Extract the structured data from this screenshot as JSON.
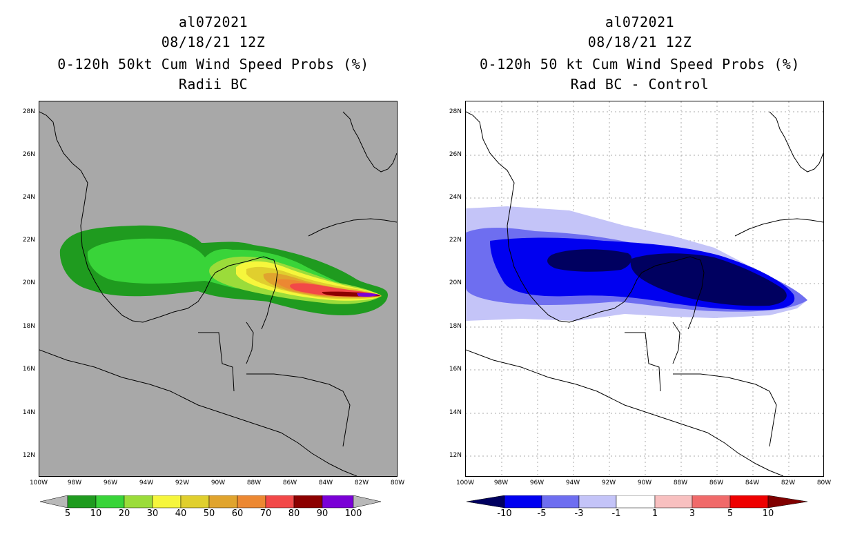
{
  "panels": [
    {
      "title_lines": [
        "al072021",
        "08/18/21 12Z",
        "0-120h 50kt Cum Wind Speed Probs (%)",
        "Radii BC"
      ],
      "lat_labels": [
        "28N",
        "26N",
        "24N",
        "22N",
        "20N",
        "18N",
        "16N",
        "14N",
        "12N"
      ],
      "lon_labels": [
        "100W",
        "98W",
        "96W",
        "94W",
        "92W",
        "90W",
        "88W",
        "86W",
        "84W",
        "82W",
        "80W"
      ],
      "colorbar": {
        "labels": [
          "5",
          "10",
          "20",
          "30",
          "40",
          "50",
          "60",
          "70",
          "80",
          "90",
          "100"
        ],
        "colors": [
          "#1f9b1f",
          "#39d439",
          "#9bdc3a",
          "#f6f63c",
          "#e0cf2e",
          "#e0a42e",
          "#ec8832",
          "#f24848",
          "#8c0000",
          "#7a00d6"
        ],
        "end_color": "#b8b8b8"
      }
    },
    {
      "title_lines": [
        "al072021",
        "08/18/21 12Z",
        "0-120h 50 kt Cum Wind Speed Probs (%)",
        "Rad BC - Control"
      ],
      "lat_labels": [
        "28N",
        "26N",
        "24N",
        "22N",
        "20N",
        "18N",
        "16N",
        "14N",
        "12N"
      ],
      "lon_labels": [
        "100W",
        "98W",
        "96W",
        "94W",
        "92W",
        "90W",
        "88W",
        "86W",
        "84W",
        "82W",
        "80W"
      ],
      "colorbar": {
        "labels": [
          "-10",
          "-5",
          "-3",
          "-1",
          "1",
          "3",
          "5",
          "10"
        ],
        "colors": [
          "#0000f0",
          "#6e6ef0",
          "#c4c4f8",
          "#ffffff",
          "#f8c0c0",
          "#f06a6a",
          "#ee0000"
        ],
        "low_color": "#000060",
        "high_color": "#800000"
      }
    }
  ],
  "map_data": {
    "land_color": "#a8a8a8",
    "left_prob_bands": [
      "5-10",
      "10-20",
      "20-30",
      "30-40",
      "40-50",
      "50-60",
      "60-70",
      "70-80",
      "80-90",
      "90-100"
    ],
    "right_diff_bands": [
      "<-10",
      "-10 to -5",
      "-5 to -3",
      "-3 to -1"
    ]
  }
}
